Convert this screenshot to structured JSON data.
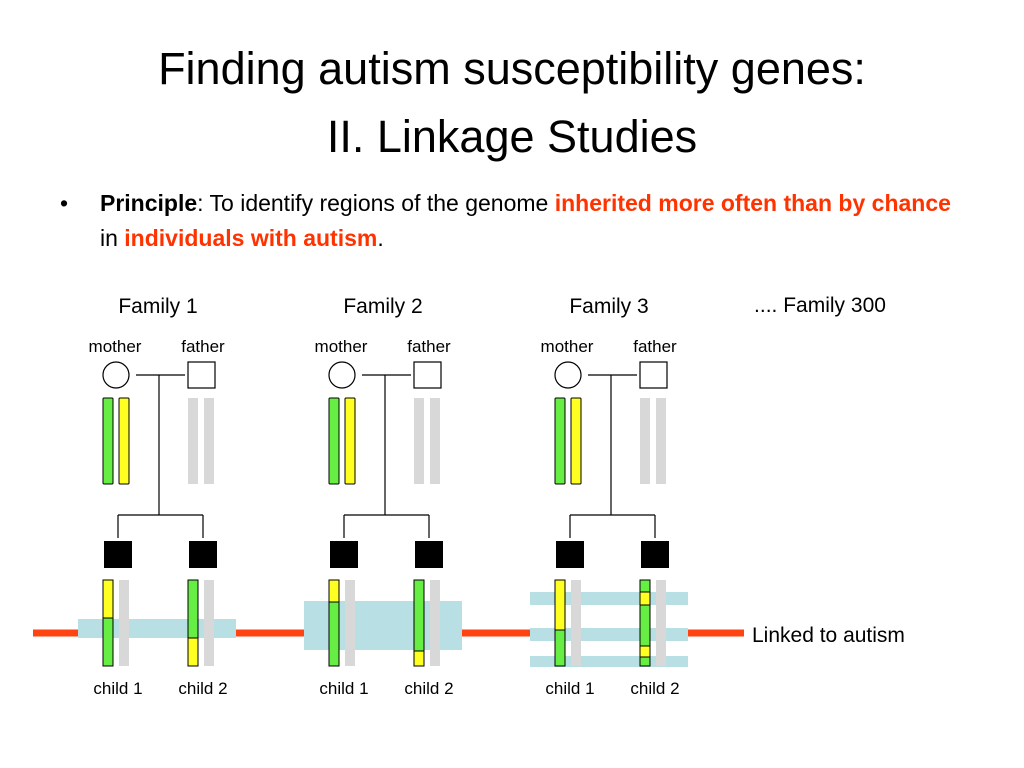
{
  "title": {
    "line1": "Finding autism susceptibility genes:",
    "line2": "II. Linkage Studies"
  },
  "bullet": {
    "marker": "•",
    "principle_label": "Principle",
    "text1": ": To identify regions of the genome ",
    "highlight1": "inherited more often than by chance",
    "text2": " in ",
    "highlight2": "individuals with autism",
    "text3": "."
  },
  "colors": {
    "linked_region_line": "#ff4411",
    "shared_band": "#b8e0e4",
    "allele_green": "#66ee44",
    "allele_yellow": "#ffff22",
    "father_chromosome": "#d8d8d8",
    "affected_child": "#000000"
  },
  "legend": {
    "more_families": ".... Family 300",
    "linked_label": "Linked to autism"
  },
  "families": [
    {
      "name": "Family 1",
      "mother_label": "mother",
      "father_label": "father",
      "mother_chromosomes": [
        "green",
        "yellow"
      ],
      "children": [
        {
          "label": "child 1",
          "affected": true,
          "chromosome_segments": [
            "yellow",
            "green"
          ]
        },
        {
          "label": "child 2",
          "affected": true,
          "chromosome_segments": [
            "green",
            "yellow"
          ]
        }
      ]
    },
    {
      "name": "Family 2",
      "mother_label": "mother",
      "father_label": "father",
      "mother_chromosomes": [
        "green",
        "yellow"
      ],
      "children": [
        {
          "label": "child 1",
          "affected": true,
          "chromosome_segments": [
            "yellow",
            "green"
          ]
        },
        {
          "label": "child 2",
          "affected": true,
          "chromosome_segments": [
            "green",
            "yellow"
          ]
        }
      ]
    },
    {
      "name": "Family 3",
      "mother_label": "mother",
      "father_label": "father",
      "mother_chromosomes": [
        "green",
        "yellow"
      ],
      "children": [
        {
          "label": "child 1",
          "affected": true,
          "chromosome_segments": [
            "yellow",
            "green"
          ]
        },
        {
          "label": "child 2",
          "affected": true,
          "chromosome_segments": [
            "green",
            "yellow",
            "green",
            "yellow",
            "green"
          ]
        }
      ]
    }
  ]
}
